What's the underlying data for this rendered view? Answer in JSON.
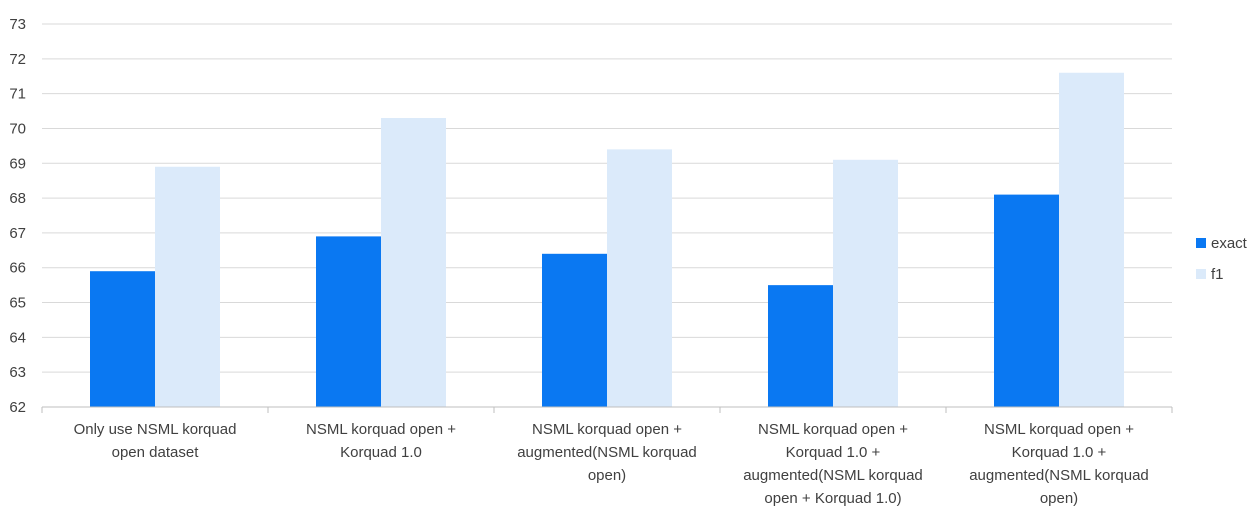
{
  "chart_data": {
    "type": "bar",
    "categories": [
      [
        "Only use NSML korquad",
        "open dataset"
      ],
      [
        "NSML korquad open +",
        "Korquad 1.0"
      ],
      [
        "NSML korquad open +",
        "augmented(NSML korquad",
        "open)"
      ],
      [
        "NSML korquad open +",
        "Korquad 1.0 +",
        "augmented(NSML korquad",
        "open + Korquad 1.0)"
      ],
      [
        "NSML korquad open +",
        "Korquad 1.0 +",
        "augmented(NSML korquad",
        "open)"
      ]
    ],
    "series": [
      {
        "name": "exact",
        "color": "#0a78f2",
        "values": [
          65.9,
          66.9,
          66.4,
          65.5,
          68.1
        ]
      },
      {
        "name": "f1",
        "color": "#dbeafa",
        "values": [
          68.9,
          70.3,
          69.4,
          69.1,
          71.6
        ]
      }
    ],
    "ylim": [
      62,
      73
    ],
    "yticks": [
      62,
      63,
      64,
      65,
      66,
      67,
      68,
      69,
      70,
      71,
      72,
      73
    ],
    "grid": true,
    "legend_position": "right",
    "title": "",
    "xlabel": "",
    "ylabel": ""
  }
}
